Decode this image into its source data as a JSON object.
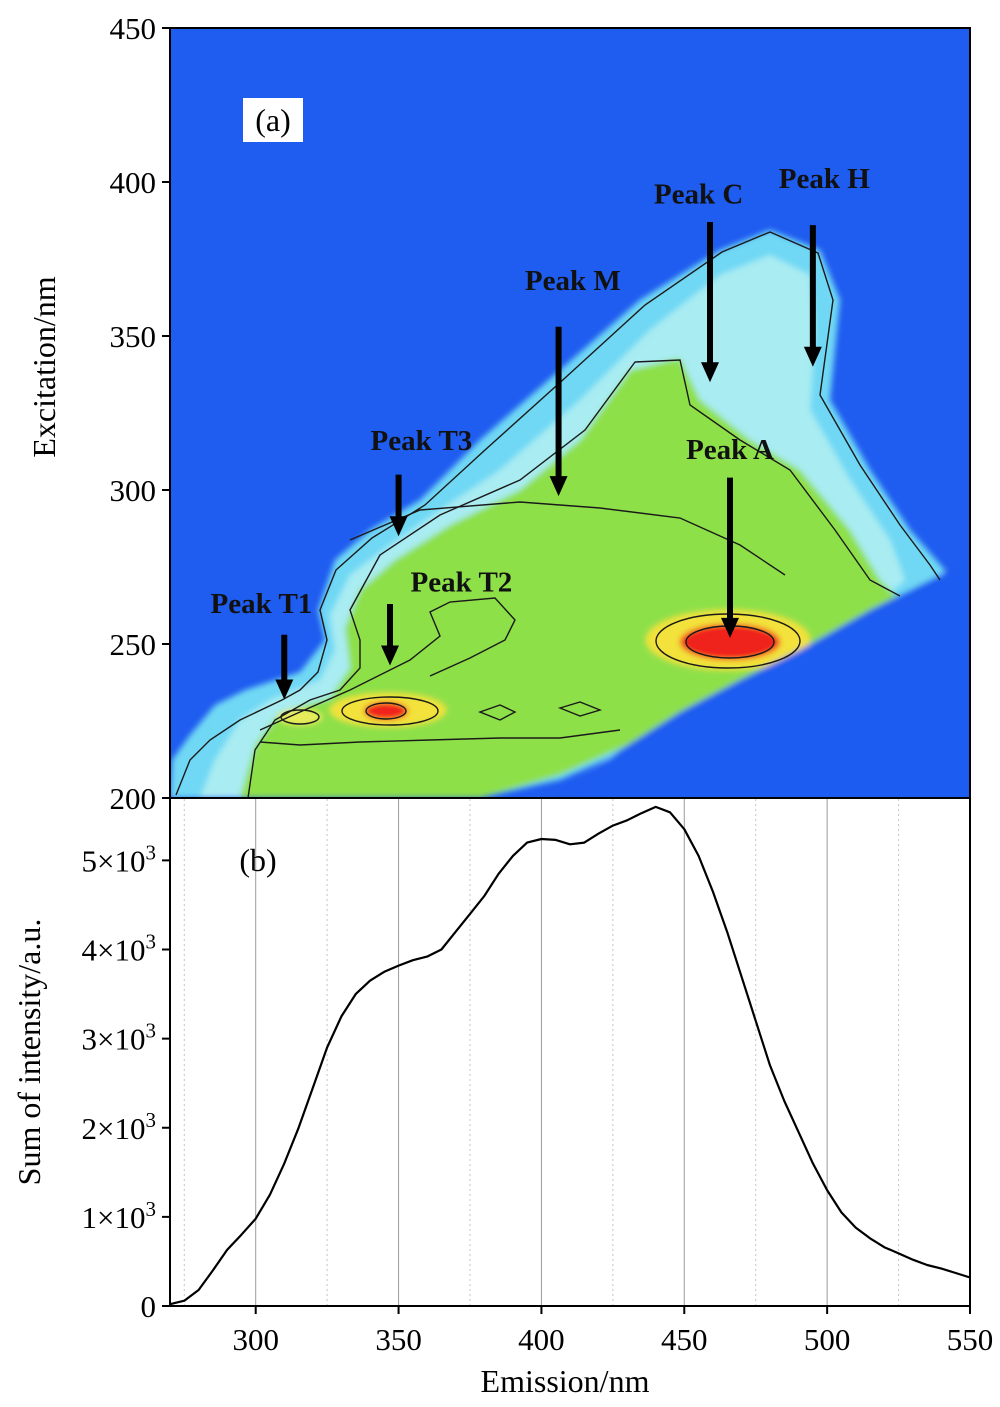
{
  "chart_data": [
    {
      "type": "heatmap",
      "panel_label": "(a)",
      "title": "",
      "xlabel": "",
      "ylabel": "Excitation/nm",
      "xlim": [
        270,
        550
      ],
      "ylim": [
        200,
        450
      ],
      "yticks": [
        200,
        250,
        300,
        350,
        400,
        450
      ],
      "colors": {
        "background": "#1f5cf0",
        "low": "#6fd8f4",
        "mid": "#8ee04a",
        "high": "#f2e23a",
        "peak": "#f0241a"
      },
      "peaks": [
        {
          "label": "Peak T1",
          "em": 310,
          "ex": 232
        },
        {
          "label": "Peak T2",
          "em": 347,
          "ex": 243
        },
        {
          "label": "Peak T3",
          "em": 350,
          "ex": 285
        },
        {
          "label": "Peak M",
          "em": 406,
          "ex": 298
        },
        {
          "label": "Peak A",
          "em": 466,
          "ex": 252
        },
        {
          "label": "Peak C",
          "em": 459,
          "ex": 335
        },
        {
          "label": "Peak H",
          "em": 495,
          "ex": 340
        }
      ],
      "label_positions": {
        "Peak T1": {
          "em": 302,
          "ex": 260
        },
        "Peak T2": {
          "em": 372,
          "ex": 267
        },
        "Peak T3": {
          "em": 358,
          "ex": 313
        },
        "Peak M": {
          "em": 411,
          "ex": 365
        },
        "Peak A": {
          "em": 466,
          "ex": 310
        },
        "Peak C": {
          "em": 455,
          "ex": 393
        },
        "Peak H": {
          "em": 499,
          "ex": 398
        }
      },
      "arrow_starts": {
        "Peak T1": {
          "ex": 253
        },
        "Peak T2": {
          "ex": 263
        },
        "Peak T3": {
          "ex": 305
        },
        "Peak M": {
          "ex": 353
        },
        "Peak A": {
          "ex": 304
        },
        "Peak C": {
          "ex": 387
        },
        "Peak H": {
          "ex": 386
        }
      }
    },
    {
      "type": "line",
      "panel_label": "(b)",
      "title": "",
      "xlabel": "Emission/nm",
      "ylabel": "Sum of intensity/a.u.",
      "xlim": [
        270,
        550
      ],
      "ylim": [
        0,
        5700
      ],
      "xticks": [
        300,
        350,
        400,
        450,
        500,
        550
      ],
      "yticks": [
        {
          "value": 0,
          "label": "0"
        },
        {
          "value": 1000,
          "label": "1×10",
          "exp": "3"
        },
        {
          "value": 2000,
          "label": "2×10",
          "exp": "3"
        },
        {
          "value": 3000,
          "label": "3×10",
          "exp": "3"
        },
        {
          "value": 4000,
          "label": "4×10",
          "exp": "3"
        },
        {
          "value": 5000,
          "label": "5×10",
          "exp": "3"
        }
      ],
      "grid": "vertical",
      "x": [
        270,
        275,
        280,
        285,
        290,
        295,
        300,
        305,
        310,
        315,
        320,
        325,
        330,
        335,
        340,
        345,
        350,
        355,
        360,
        365,
        370,
        375,
        380,
        385,
        390,
        395,
        400,
        405,
        410,
        415,
        420,
        425,
        430,
        435,
        440,
        445,
        450,
        455,
        460,
        465,
        470,
        475,
        480,
        485,
        490,
        495,
        500,
        505,
        510,
        515,
        520,
        525,
        530,
        535,
        540,
        545,
        550
      ],
      "y": [
        20,
        60,
        180,
        400,
        630,
        800,
        980,
        1250,
        1600,
        2000,
        2450,
        2900,
        3250,
        3500,
        3650,
        3750,
        3820,
        3880,
        3920,
        4000,
        4200,
        4400,
        4600,
        4850,
        5050,
        5200,
        5240,
        5230,
        5180,
        5200,
        5300,
        5390,
        5450,
        5530,
        5600,
        5540,
        5350,
        5050,
        4650,
        4200,
        3700,
        3200,
        2700,
        2300,
        1950,
        1600,
        1300,
        1050,
        880,
        760,
        660,
        590,
        520,
        460,
        420,
        370,
        320
      ]
    }
  ]
}
